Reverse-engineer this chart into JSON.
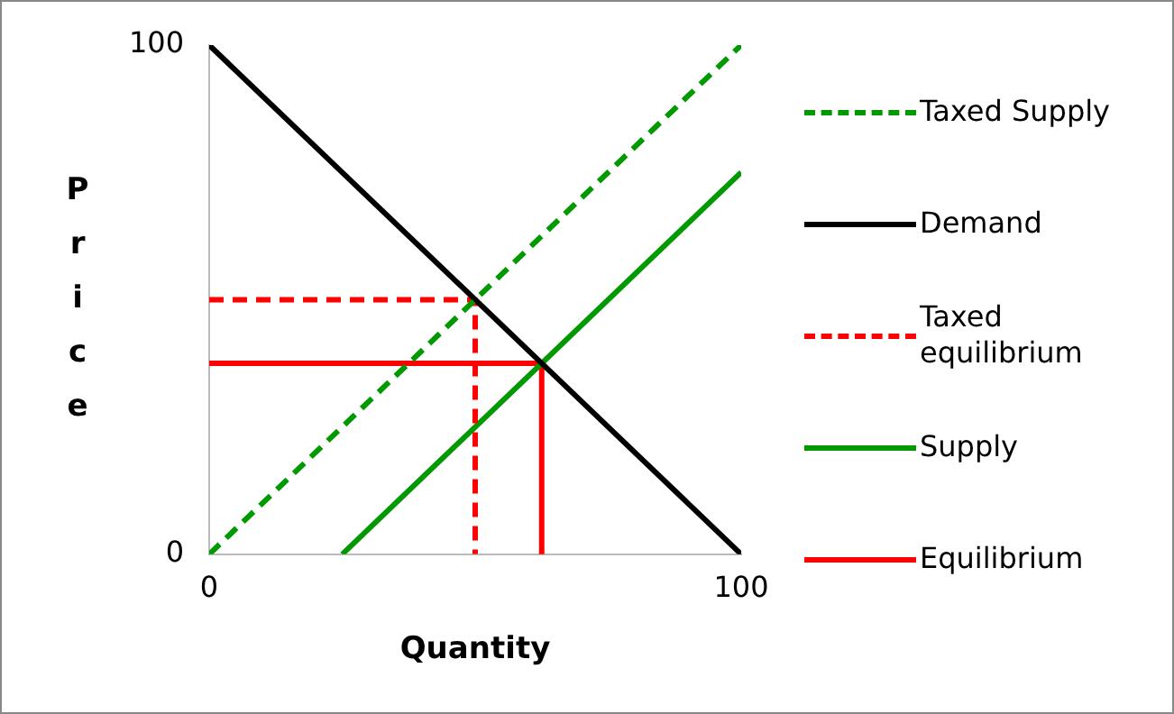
{
  "chart_data": {
    "type": "line",
    "xlabel": "Quantity",
    "ylabel": "Price",
    "xlim": [
      0,
      100
    ],
    "ylim": [
      0,
      100
    ],
    "xticks": [
      0,
      100
    ],
    "yticks": [
      0,
      100
    ],
    "grid": false,
    "legend": "right",
    "marker": "none",
    "series": [
      {
        "name": "Taxed Supply",
        "color": "#009900",
        "line_style": "dashed",
        "x": [
          0,
          100
        ],
        "values": [
          0,
          100
        ]
      },
      {
        "name": "Demand",
        "color": "#000000",
        "line_style": "solid",
        "x": [
          0,
          100
        ],
        "values": [
          100,
          0
        ]
      },
      {
        "name": "Taxed equilibrium",
        "color": "#ff0000",
        "line_style": "dashed",
        "x": [
          0,
          50,
          50
        ],
        "values": [
          50,
          50,
          0
        ]
      },
      {
        "name": "Supply",
        "color": "#009900",
        "line_style": "solid",
        "x": [
          25,
          100
        ],
        "values": [
          0,
          75
        ]
      },
      {
        "name": "Equilibrium",
        "color": "#ff0000",
        "line_style": "solid",
        "x": [
          0,
          62.5,
          62.5
        ],
        "values": [
          37.5,
          37.5,
          0
        ]
      }
    ]
  }
}
